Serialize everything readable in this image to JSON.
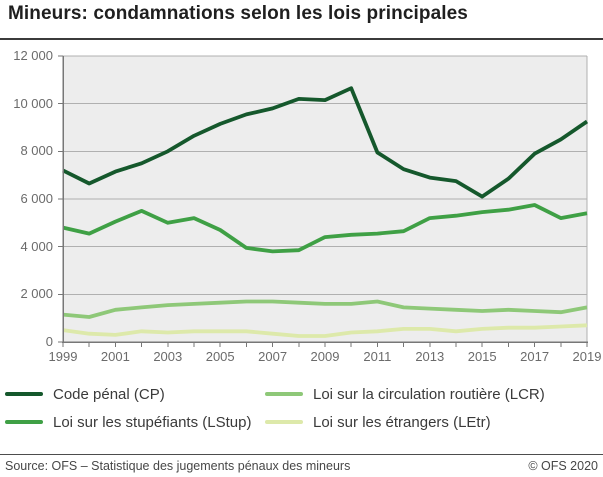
{
  "title": "Mineurs: condamnations selon les lois principales",
  "chart_data": {
    "type": "line",
    "x": [
      1999,
      2000,
      2001,
      2002,
      2003,
      2004,
      2005,
      2006,
      2007,
      2008,
      2009,
      2010,
      2011,
      2012,
      2013,
      2014,
      2015,
      2016,
      2017,
      2018,
      2019
    ],
    "series": [
      {
        "name": "Code pénal (CP)",
        "color": "#15582c",
        "values": [
          7200,
          6650,
          7150,
          7500,
          8000,
          8650,
          9150,
          9550,
          9800,
          10200,
          10150,
          10650,
          7950,
          7250,
          6900,
          6750,
          6100,
          6850,
          7900,
          8500,
          9250
        ]
      },
      {
        "name": "Loi sur les stupéfiants (LStup)",
        "color": "#3fa045",
        "values": [
          4800,
          4550,
          5050,
          5500,
          5000,
          5200,
          4700,
          3950,
          3800,
          3850,
          4400,
          4500,
          4550,
          4650,
          5200,
          5300,
          5450,
          5550,
          5750,
          5200,
          5400
        ]
      },
      {
        "name": "Loi sur la circulation routière (LCR)",
        "color": "#8ec878",
        "values": [
          1150,
          1050,
          1350,
          1450,
          1550,
          1600,
          1650,
          1700,
          1700,
          1650,
          1600,
          1600,
          1700,
          1450,
          1400,
          1350,
          1300,
          1350,
          1300,
          1250,
          1450
        ]
      },
      {
        "name": "Loi sur les étrangers (LEtr)",
        "color": "#dde9aa",
        "values": [
          500,
          350,
          300,
          450,
          400,
          450,
          450,
          450,
          350,
          250,
          250,
          400,
          450,
          550,
          550,
          450,
          550,
          600,
          600,
          650,
          700
        ]
      }
    ],
    "ylim": [
      0,
      12000
    ],
    "ytick_step": 2000,
    "y_tick_labels": [
      "0",
      "2 000",
      "4 000",
      "6 000",
      "8 000",
      "10 000",
      "12 000"
    ],
    "x_tick_labels": [
      "1999",
      "2001",
      "2003",
      "2005",
      "2007",
      "2009",
      "2011",
      "2013",
      "2015",
      "2017",
      "2019"
    ],
    "grid": true,
    "legend_position": "bottom",
    "plot_bg": "#ededed",
    "grid_color": "#b0b0b0",
    "axis_color": "#777777"
  },
  "footer": {
    "source": "Source: OFS – Statistique des jugements pénaux des mineurs",
    "copyright": "© OFS 2020"
  }
}
